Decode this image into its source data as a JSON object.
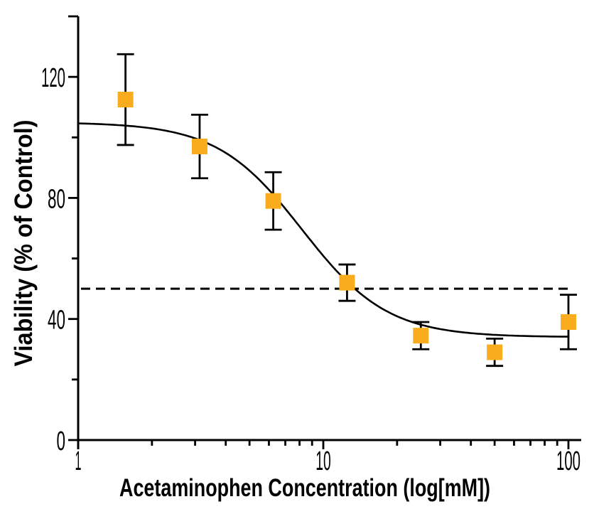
{
  "figure": {
    "type": "dose-response-plot",
    "background": "#FFFFFF",
    "line_color": "#000000",
    "marker_color": "#F9AD1E"
  },
  "chart_data": {
    "type": "scatter",
    "x_scale": "log",
    "xlabel": "Acetaminophen Concentration (log[mM])",
    "ylabel": "Viability (% of Control)",
    "xlim": [
      1,
      113
    ],
    "ylim": [
      0,
      140
    ],
    "x_major_ticks": [
      {
        "value": 1,
        "label": "1"
      },
      {
        "value": 10,
        "label": "10"
      },
      {
        "value": 100,
        "label": "100"
      }
    ],
    "x_minor_ticks": [
      2,
      3,
      4,
      5,
      6,
      7,
      8,
      9,
      20,
      30,
      40,
      50,
      60,
      70,
      80,
      90
    ],
    "y_major_ticks": [
      {
        "value": 0,
        "label": "0"
      },
      {
        "value": 40,
        "label": "40"
      },
      {
        "value": 80,
        "label": "80"
      },
      {
        "value": 120,
        "label": "120"
      },
      {
        "value": 140,
        "label": ""
      }
    ],
    "y_minor_ticks": [
      20,
      60,
      100
    ],
    "series": [
      {
        "name": "Viability",
        "marker": "square",
        "marker_color": "#F9AD1E",
        "marker_size": 22,
        "points": [
          {
            "x": 1.56,
            "y": 112.5,
            "err": 15
          },
          {
            "x": 3.13,
            "y": 97,
            "err": 10.5
          },
          {
            "x": 6.25,
            "y": 79,
            "err": 9.5
          },
          {
            "x": 12.5,
            "y": 52,
            "err": 6
          },
          {
            "x": 25,
            "y": 34.5,
            "err": 4.5
          },
          {
            "x": 50,
            "y": 29,
            "err": 4.5
          },
          {
            "x": 100,
            "y": 39,
            "err": 9
          }
        ]
      }
    ],
    "fit_curve": {
      "model": "4PL",
      "top": 105,
      "bottom": 34,
      "ec50": 8.2,
      "hill": 2.5,
      "x_start": 1,
      "x_end": 101,
      "color": "#000000"
    },
    "reference_line": {
      "y": 50,
      "style": "dashed",
      "color": "#000000"
    },
    "grid": false,
    "legend": null
  }
}
